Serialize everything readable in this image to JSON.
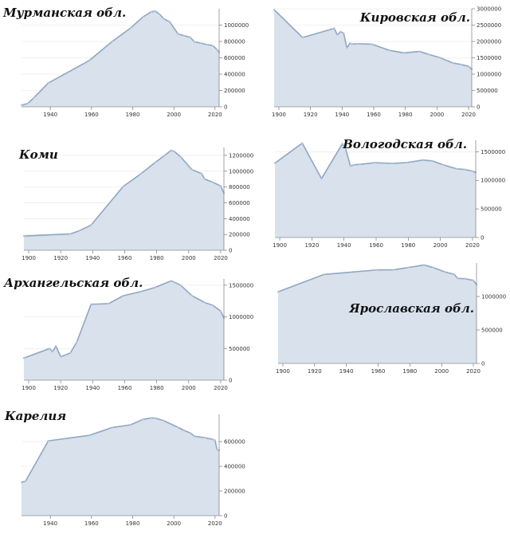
{
  "colors": {
    "area": "#d8e1ec",
    "line": "#8fa6c2",
    "point": "#b4c4d6"
  },
  "chart_data": [
    {
      "type": "area",
      "title": "Мурманская обл.",
      "xlim": [
        1926,
        2022
      ],
      "ylim": [
        0,
        1200000
      ],
      "xticks": [
        1940,
        1960,
        1980,
        2000,
        2020
      ],
      "yticks": [
        0,
        200000,
        400000,
        600000,
        800000,
        1000000
      ],
      "x": [
        1926,
        1929,
        1932,
        1939,
        1959,
        1970,
        1979,
        1985,
        1989,
        1991,
        1993,
        1995,
        1998,
        2002,
        2005,
        2008,
        2010,
        2013,
        2016,
        2019,
        2021,
        2022
      ],
      "y": [
        20000,
        40000,
        110000,
        291000,
        568000,
        799000,
        965000,
        1100000,
        1164000,
        1170000,
        1135000,
        1080000,
        1040000,
        893000,
        870000,
        850000,
        795000,
        780000,
        762000,
        748000,
        700000,
        667000
      ]
    },
    {
      "type": "area",
      "title": "Кировская обл.",
      "xlim": [
        1897,
        2022
      ],
      "ylim": [
        0,
        3000000
      ],
      "xticks": [
        1900,
        1920,
        1940,
        1960,
        1980,
        2000,
        2020
      ],
      "yticks": [
        0,
        500000,
        1000000,
        1500000,
        2000000,
        2500000,
        3000000
      ],
      "x": [
        1897,
        1915,
        1935,
        1937,
        1939,
        1941,
        1943,
        1945,
        1946,
        1950,
        1959,
        1970,
        1979,
        1989,
        1995,
        2002,
        2010,
        2015,
        2020,
        2022
      ],
      "y": [
        2970000,
        2120000,
        2400000,
        2200000,
        2300000,
        2250000,
        1800000,
        1950000,
        1920000,
        1930000,
        1916000,
        1727000,
        1650000,
        1694000,
        1600000,
        1503000,
        1342000,
        1297000,
        1240000,
        1150000
      ]
    },
    {
      "type": "area",
      "title": "Коми",
      "xlim": [
        1897,
        2022
      ],
      "ylim": [
        0,
        1300000
      ],
      "xticks": [
        1900,
        1920,
        1940,
        1960,
        1980,
        2000,
        2020
      ],
      "yticks": [
        0,
        200000,
        400000,
        600000,
        800000,
        1000000,
        1200000
      ],
      "x": [
        1897,
        1926,
        1932,
        1939,
        1959,
        1970,
        1979,
        1985,
        1989,
        1991,
        1995,
        2002,
        2008,
        2010,
        2015,
        2020,
        2022
      ],
      "y": [
        180000,
        207000,
        250000,
        319000,
        806000,
        965000,
        1110000,
        1200000,
        1263000,
        1250000,
        1180000,
        1019000,
        970000,
        901000,
        860000,
        813000,
        720000
      ]
    },
    {
      "type": "area",
      "title": "Вологодская обл.",
      "xlim": [
        1897,
        2022
      ],
      "ylim": [
        0,
        1700000
      ],
      "xticks": [
        1900,
        1920,
        1940,
        1960,
        1980,
        2000,
        2020
      ],
      "yticks": [
        0,
        500000,
        1000000,
        1500000
      ],
      "x": [
        1897,
        1914,
        1926,
        1939,
        1941,
        1944,
        1946,
        1950,
        1959,
        1970,
        1979,
        1989,
        1995,
        2002,
        2010,
        2015,
        2020,
        2022
      ],
      "y": [
        1300000,
        1650000,
        1030000,
        1640000,
        1550000,
        1250000,
        1270000,
        1280000,
        1308000,
        1296000,
        1310000,
        1354000,
        1340000,
        1269000,
        1202000,
        1190000,
        1160000,
        1140000
      ]
    },
    {
      "type": "area",
      "title": "Архангельская обл.",
      "xlim": [
        1897,
        2022
      ],
      "ylim": [
        0,
        1600000
      ],
      "xticks": [
        1900,
        1920,
        1940,
        1960,
        1980,
        2000,
        2020
      ],
      "yticks": [
        0,
        500000,
        1000000,
        1500000
      ],
      "x": [
        1897,
        1913,
        1915,
        1917,
        1920,
        1923,
        1926,
        1930,
        1939,
        1950,
        1959,
        1970,
        1979,
        1989,
        1991,
        1995,
        2002,
        2010,
        2015,
        2020,
        2022
      ],
      "y": [
        350000,
        500000,
        450000,
        540000,
        370000,
        400000,
        430000,
        600000,
        1200000,
        1210000,
        1334000,
        1400000,
        1466000,
        1570000,
        1550000,
        1500000,
        1336000,
        1227000,
        1184000,
        1092000,
        980000
      ]
    },
    {
      "type": "area",
      "title": "Ярославская обл.",
      "xlim": [
        1897,
        2022
      ],
      "ylim": [
        0,
        1500000
      ],
      "xticks": [
        1900,
        1920,
        1940,
        1960,
        1980,
        2000,
        2020
      ],
      "yticks": [
        0,
        500000,
        1000000
      ],
      "x": [
        1897,
        1926,
        1959,
        1970,
        1979,
        1989,
        1995,
        2002,
        2008,
        2010,
        2015,
        2020,
        2022
      ],
      "y": [
        1070000,
        1330000,
        1396000,
        1400000,
        1433000,
        1471000,
        1430000,
        1368000,
        1330000,
        1272000,
        1265000,
        1240000,
        1180000
      ]
    },
    {
      "type": "area",
      "title": "Карелия",
      "xlim": [
        1926,
        2022
      ],
      "ylim": [
        0,
        820000
      ],
      "xticks": [
        1940,
        1960,
        1980,
        2000,
        2020
      ],
      "yticks": [
        0,
        200000,
        400000,
        600000
      ],
      "x": [
        1926,
        1928,
        1939,
        1959,
        1970,
        1979,
        1985,
        1989,
        1991,
        1995,
        2002,
        2005,
        2008,
        2010,
        2015,
        2019,
        2020,
        2021,
        2022
      ],
      "y": [
        270000,
        280000,
        606000,
        651000,
        714000,
        736000,
        780000,
        792000,
        790000,
        770000,
        716000,
        690000,
        670000,
        643000,
        632000,
        618000,
        610000,
        535000,
        530000
      ]
    }
  ]
}
